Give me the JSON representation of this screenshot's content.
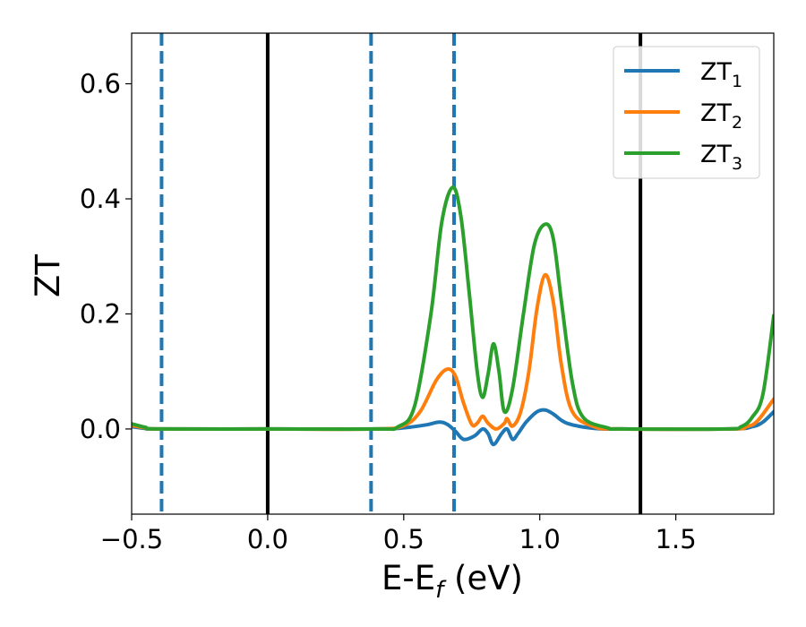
{
  "chart_data": {
    "type": "line",
    "xlabel": "E-E_f (eV)",
    "xlabel_main": "E-E",
    "xlabel_sub": "f",
    "xlabel_unit": " (eV)",
    "ylabel": "ZT",
    "xlim": [
      -0.5,
      1.86
    ],
    "ylim": [
      -0.148,
      0.688
    ],
    "xticks": [
      -0.5,
      0.0,
      0.5,
      1.0,
      1.5
    ],
    "xtick_labels": [
      "−0.5",
      "0.0",
      "0.5",
      "1.0",
      "1.5"
    ],
    "yticks": [
      0.0,
      0.2,
      0.4,
      0.6
    ],
    "ytick_labels": [
      "0.0",
      "0.2",
      "0.4",
      "0.6"
    ],
    "grid": false,
    "legend_position": "top-right",
    "vlines_solid": [
      0.0,
      1.37
    ],
    "vlines_dashed": [
      -0.39,
      0.38,
      0.685
    ],
    "colors": {
      "ZT1": "#1f77b4",
      "ZT2": "#ff7f0e",
      "ZT3": "#2ca02c",
      "solid_vline": "#000000",
      "dashed_vline": "#1f77b4"
    },
    "series": [
      {
        "name": "ZT1",
        "legend_main": "ZT",
        "legend_sub": "1",
        "color": "#1f77b4",
        "points": [
          [
            -0.5,
            0.004
          ],
          [
            -0.45,
            0.001
          ],
          [
            -0.4,
            0.0
          ],
          [
            0.0,
            0.0
          ],
          [
            0.4,
            0.0
          ],
          [
            0.5,
            0.002
          ],
          [
            0.58,
            0.007
          ],
          [
            0.63,
            0.012
          ],
          [
            0.66,
            0.008
          ],
          [
            0.69,
            -0.004
          ],
          [
            0.72,
            -0.018
          ],
          [
            0.76,
            -0.012
          ],
          [
            0.79,
            0.0
          ],
          [
            0.81,
            -0.008
          ],
          [
            0.83,
            -0.027
          ],
          [
            0.86,
            -0.008
          ],
          [
            0.88,
            0.0
          ],
          [
            0.9,
            -0.018
          ],
          [
            0.92,
            -0.008
          ],
          [
            0.95,
            0.012
          ],
          [
            0.99,
            0.03
          ],
          [
            1.02,
            0.033
          ],
          [
            1.05,
            0.026
          ],
          [
            1.1,
            0.01
          ],
          [
            1.2,
            0.001
          ],
          [
            1.3,
            0.0
          ],
          [
            1.7,
            0.0
          ],
          [
            1.78,
            0.004
          ],
          [
            1.82,
            0.012
          ],
          [
            1.86,
            0.03
          ]
        ]
      },
      {
        "name": "ZT2",
        "legend_main": "ZT",
        "legend_sub": "2",
        "color": "#ff7f0e",
        "points": [
          [
            -0.5,
            0.006
          ],
          [
            -0.45,
            0.002
          ],
          [
            -0.4,
            0.0
          ],
          [
            0.0,
            0.0
          ],
          [
            0.4,
            0.0
          ],
          [
            0.5,
            0.006
          ],
          [
            0.56,
            0.03
          ],
          [
            0.62,
            0.085
          ],
          [
            0.66,
            0.104
          ],
          [
            0.69,
            0.092
          ],
          [
            0.72,
            0.045
          ],
          [
            0.75,
            0.008
          ],
          [
            0.77,
            0.01
          ],
          [
            0.79,
            0.022
          ],
          [
            0.81,
            0.01
          ],
          [
            0.84,
            0.0
          ],
          [
            0.87,
            0.01
          ],
          [
            0.88,
            0.018
          ],
          [
            0.9,
            0.005
          ],
          [
            0.93,
            0.03
          ],
          [
            0.96,
            0.1
          ],
          [
            0.99,
            0.21
          ],
          [
            1.02,
            0.268
          ],
          [
            1.05,
            0.22
          ],
          [
            1.08,
            0.11
          ],
          [
            1.12,
            0.03
          ],
          [
            1.2,
            0.004
          ],
          [
            1.3,
            0.0
          ],
          [
            1.7,
            0.0
          ],
          [
            1.76,
            0.004
          ],
          [
            1.8,
            0.014
          ],
          [
            1.86,
            0.052
          ]
        ]
      },
      {
        "name": "ZT3",
        "legend_main": "ZT",
        "legend_sub": "3",
        "color": "#2ca02c",
        "points": [
          [
            -0.5,
            0.009
          ],
          [
            -0.45,
            0.003
          ],
          [
            -0.4,
            0.0
          ],
          [
            0.0,
            0.0
          ],
          [
            0.4,
            0.0
          ],
          [
            0.48,
            0.004
          ],
          [
            0.54,
            0.04
          ],
          [
            0.6,
            0.2
          ],
          [
            0.64,
            0.36
          ],
          [
            0.68,
            0.42
          ],
          [
            0.71,
            0.37
          ],
          [
            0.74,
            0.24
          ],
          [
            0.77,
            0.1
          ],
          [
            0.79,
            0.055
          ],
          [
            0.81,
            0.095
          ],
          [
            0.83,
            0.148
          ],
          [
            0.85,
            0.1
          ],
          [
            0.87,
            0.03
          ],
          [
            0.9,
            0.07
          ],
          [
            0.94,
            0.2
          ],
          [
            0.98,
            0.32
          ],
          [
            1.02,
            0.356
          ],
          [
            1.05,
            0.33
          ],
          [
            1.08,
            0.22
          ],
          [
            1.12,
            0.08
          ],
          [
            1.16,
            0.02
          ],
          [
            1.25,
            0.002
          ],
          [
            1.3,
            0.0
          ],
          [
            1.68,
            0.0
          ],
          [
            1.74,
            0.004
          ],
          [
            1.78,
            0.02
          ],
          [
            1.82,
            0.06
          ],
          [
            1.86,
            0.197
          ]
        ]
      }
    ]
  }
}
